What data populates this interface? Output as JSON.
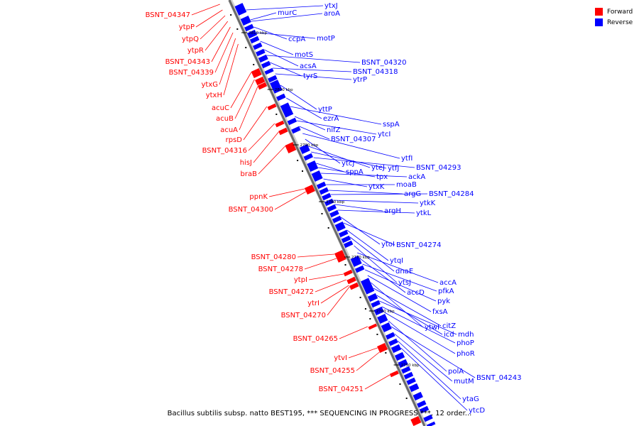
{
  "legend": {
    "forward_label": "Forward",
    "reverse_label": "Reverse",
    "forward_color": "#ff0000",
    "reverse_color": "#0000ff"
  },
  "caption": "Bacillus subtilis subsp. natto BEST195, *** SEQUENCING IN PROGRESS ***, 12 order...",
  "axis": {
    "tick_labels": [
      "2810 kbp",
      "2800 kbp",
      "2790 kbp",
      "2780 kbp",
      "2770 kbp",
      "2760 kbp",
      "2750 kbp"
    ]
  },
  "reverse_genes": [
    "ytxJ",
    "murC",
    "aroA",
    "ccpA",
    "motP",
    "motS",
    "acsA",
    "BSNT_04320",
    "tyrS",
    "BSNT_04318",
    "ytrP",
    "yttP",
    "ezrA",
    "sspA",
    "nifZ",
    "ytcI",
    "BSNT_04307",
    "ytfI",
    "ytcJ",
    "yteJ",
    "ytfJ",
    "BSNT_04293",
    "sppA",
    "tpx",
    "ackA",
    "ytxK",
    "moaB",
    "argG",
    "BSNT_04284",
    "ytkK",
    "argH",
    "ytkL",
    "ytoI",
    "BSNT_04274",
    "ytqI",
    "dnaE",
    "ytsJ",
    "accA",
    "accD",
    "pfkA",
    "pyk",
    "fxsA",
    "ytwI",
    "citZ",
    "icd",
    "mdh",
    "phoP",
    "phoR",
    "polA",
    "BSNT_04243",
    "mutM",
    "ytaG",
    "ytcD"
  ],
  "forward_genes": [
    "BSNT_04347",
    "ytpP",
    "ytpQ",
    "ytpR",
    "BSNT_04343",
    "BSNT_04339",
    "ytxG",
    "ytxH",
    "acuC",
    "acuB",
    "acuA",
    "rpsD",
    "BSNT_04316",
    "hisJ",
    "braB",
    "ppnK",
    "BSNT_04300",
    "BSNT_04280",
    "BSNT_04278",
    "ytpI",
    "BSNT_04272",
    "ytrI",
    "BSNT_04270",
    "BSNT_04265",
    "ytvI",
    "BSNT_04255",
    "BSNT_04251"
  ]
}
